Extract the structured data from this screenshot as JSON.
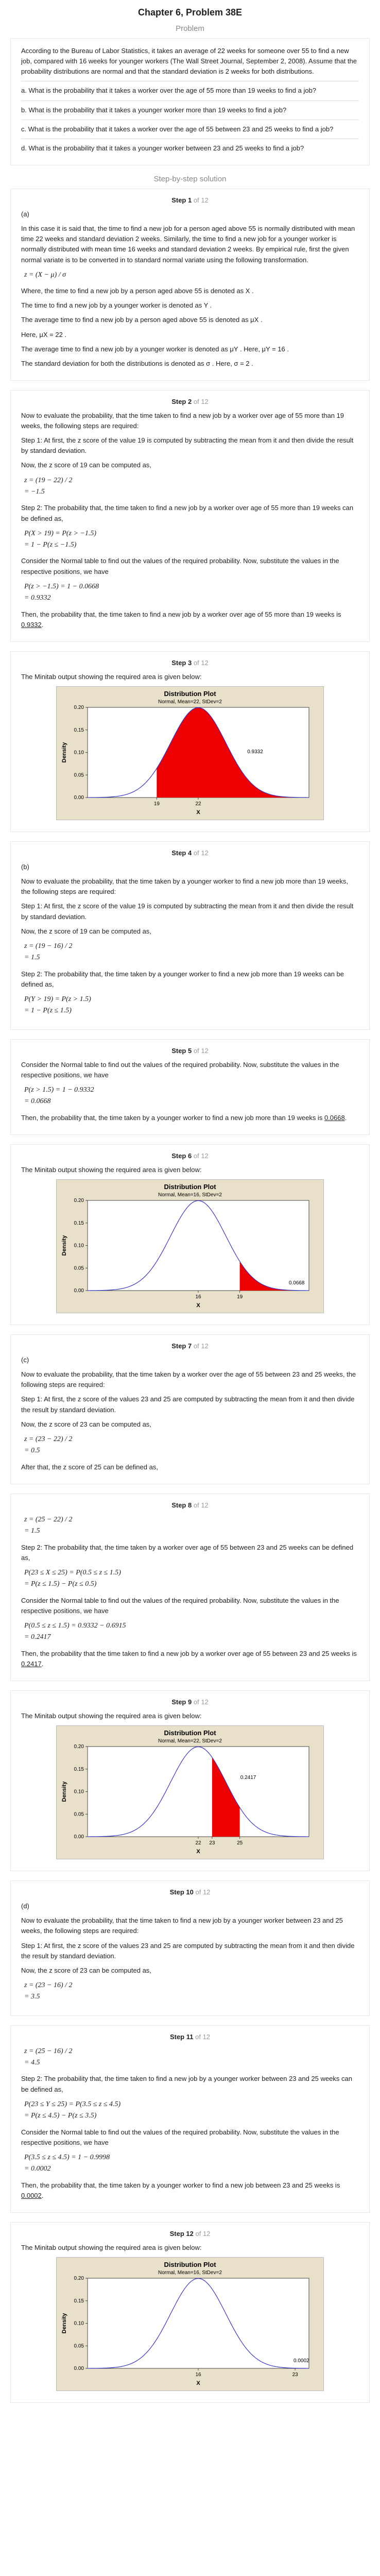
{
  "header": {
    "title": "Chapter 6, Problem 38E",
    "problem_label": "Problem",
    "solution_label": "Step-by-step solution"
  },
  "problem": {
    "intro": "According to the Bureau of Labor Statistics, it takes an average of 22 weeks for someone over 55 to find a new job, compared with 16 weeks for younger workers (The Wall Street Journal, September 2, 2008). Assume that the probability distributions are normal and that the standard deviation is 2 weeks for both distributions.",
    "a": "a. What is the probability that it takes a worker over the age of 55 more than 19 weeks to find a job?",
    "b": "b. What is the probability that it takes a younger worker more than 19 weeks to find a job?",
    "c": "c. What is the probability that it takes a worker over the age of 55 between 23 and 25 weeks to find a job?",
    "d": "d. What is the probability that it takes a younger worker between 23 and 25 weeks to find a job?"
  },
  "steps": [
    {
      "num": "1",
      "of": "of 12",
      "part": "(a)",
      "p1": "In this case it is said that, the time to find a new job for a person aged above 55 is normally distributed with mean time 22 weeks and standard deviation 2 weeks. Similarly, the time to find a new job for a younger worker is normally distributed with mean time 16 weeks and standard deviation 2 weeks. By empirical rule, first the given normal variate is to be converted in to standard normal variate using the following transformation.",
      "formula": "z = (X − μ) / σ",
      "p2": "Where, the time to find a new job by a person aged above 55 is denoted as  X .",
      "p3": "The time to find a new job by a younger worker is denoted as  Y .",
      "p4": "The average time to find a new job by a person aged above 55 is denoted as  μX .",
      "p5": "Here,  μX = 22 .",
      "p6": "The average time to find a new job by a younger worker is denoted as  μY . Here,  μY = 16 .",
      "p7": "The standard deviation for both the distributions is denoted as  σ . Here,  σ = 2 ."
    },
    {
      "num": "2",
      "of": "of 12",
      "p1": "Now to evaluate the probability, that the time taken to find a new job by a worker over age of 55 more than 19 weeks, the following steps are required:",
      "p2": "Step 1: At first, the z score of the value 19 is computed by subtracting the mean from it and then divide the result by standard deviation.",
      "p3": "Now, the z score of 19 can be computed as,",
      "m1": "z = (19 − 22) / 2",
      "m2": "= −1.5",
      "p4": "Step 2: The probability that, the time taken to find a new job by a worker over age of 55 more than 19 weeks can be defined as,",
      "m3": "P(X > 19) = P(z > −1.5)",
      "m4": "= 1 − P(z ≤ −1.5)",
      "p5": "Consider the Normal table to find out the values of the required probability. Now, substitute the values in the respective positions, we have",
      "m5": "P(z > −1.5) = 1 − 0.0668",
      "m6": "= 0.9332",
      "p6": "Then, the probability that, the time taken to find a new job by a worker over age of 55 more than 19 weeks is",
      "ans": "0.9332"
    },
    {
      "num": "3",
      "of": "of 12",
      "p1": "The Minitab output showing the required area is given below:"
    },
    {
      "num": "4",
      "of": "of 12",
      "part": "(b)",
      "p1": "Now to evaluate the probability, that the time taken by a younger worker to find a new job more than 19 weeks, the following steps are required:",
      "p2": "Step 1: At first, the z score of the value 19 is computed by subtracting the mean from it and then divide the result by standard deviation.",
      "p3": "Now, the z score of 19 can be computed as,",
      "m1": "z = (19 − 16) / 2",
      "m2": "= 1.5",
      "p4": "Step 2: The probability that, the time taken by a younger worker to find a new job more than 19 weeks can be defined as,",
      "m3": "P(Y > 19) = P(z > 1.5)",
      "m4": "= 1 − P(z ≤ 1.5)"
    },
    {
      "num": "5",
      "of": "of 12",
      "p1": "Consider the Normal table to find out the values of the required probability. Now, substitute the values in the respective positions, we have",
      "m1": "P(z > 1.5) = 1 − 0.9332",
      "m2": "= 0.0668",
      "p2": "Then, the probability that, the time taken by a younger worker to find a new job more than 19 weeks is",
      "ans": "0.0668"
    },
    {
      "num": "6",
      "of": "of 12",
      "p1": "The Minitab output showing the required area is given below:"
    },
    {
      "num": "7",
      "of": "of 12",
      "part": "(c)",
      "p1": "Now to evaluate the probability, that the time taken by a worker over the age of 55 between 23 and 25 weeks, the following steps are required:",
      "p2": "Step 1: At first, the z score of the values 23 and 25 are computed by subtracting the mean from it and then divide the result by standard deviation.",
      "p3": "Now, the z score of 23 can be computed as,",
      "m1": "z = (23 − 22) / 2",
      "m2": "= 0.5",
      "p4": "After that, the z score of 25 can be defined as,"
    },
    {
      "num": "8",
      "of": "of 12",
      "m1": "z = (25 − 22) / 2",
      "m2": "= 1.5",
      "p1": "Step 2: The probability that, the time taken by a worker over age of 55 between 23 and 25 weeks can be defined as,",
      "m3": "P(23 ≤ X ≤ 25) = P(0.5 ≤ z ≤ 1.5)",
      "m4": "= P(z ≤ 1.5) − P(z ≤ 0.5)",
      "p2": "Consider the Normal table to find out the values of the required probability. Now, substitute the values in the respective positions, we have",
      "m5": "P(0.5 ≤ z ≤ 1.5) = 0.9332 − 0.6915",
      "m6": "= 0.2417",
      "p3": "Then, the probability that the time taken to find a new job by a worker over age of 55 between 23 and 25 weeks is",
      "ans": "0.2417"
    },
    {
      "num": "9",
      "of": "of 12",
      "p1": "The Minitab output showing the required area is given below:"
    },
    {
      "num": "10",
      "of": "of 12",
      "part": "(d)",
      "p1": "Now to evaluate the probability, that the time taken to find a new job by a younger worker between 23 and 25 weeks, the following steps are required:",
      "p2": "Step 1: At first, the z score of the values 23 and 25 are computed by subtracting the mean from it and then divide the result by standard deviation.",
      "p3": "Now, the z score of 23 can be computed as,",
      "m1": "z = (23 − 16) / 2",
      "m2": "= 3.5"
    },
    {
      "num": "11",
      "of": "of 12",
      "m1": "z = (25 − 16) / 2",
      "m2": "= 4.5",
      "p1": "Step 2: The probability that, the time taken to find a new job by a younger worker between 23 and 25 weeks can be defined as,",
      "m3": "P(23 ≤ Y ≤ 25) = P(3.5 ≤ z ≤ 4.5)",
      "m4": "= P(z ≤ 4.5) − P(z ≤ 3.5)",
      "p2": "Consider the Normal table to find out the values of the required probability. Now, substitute the values in the respective positions, we have",
      "m5": "P(3.5 ≤ z ≤ 4.5) = 1 − 0.9998",
      "m6": "= 0.0002",
      "p3": "Then, the probability that, the time taken by a younger worker to find a new job between 23 and 25 weeks is",
      "ans": "0.0002"
    },
    {
      "num": "12",
      "of": "of 12",
      "p1": "The Minitab output showing the required area is given below:"
    }
  ],
  "charts": [
    {
      "title": "Distribution Plot",
      "subtitle": "Normal, Mean=22, StDev=2",
      "xlabel": "X",
      "ylabel": "Density",
      "mean": 22,
      "sd": 2,
      "shade_from": 19,
      "shade_to": 30,
      "area_label": "0.9332",
      "xticks": [
        "19",
        "22"
      ],
      "yticks": [
        "0.00",
        "0.05",
        "0.10",
        "0.15",
        "0.20"
      ]
    },
    {
      "title": "Distribution Plot",
      "subtitle": "Normal, Mean=16, StDev=2",
      "xlabel": "X",
      "ylabel": "Density",
      "mean": 16,
      "sd": 2,
      "shade_from": 19,
      "shade_to": 24,
      "area_label": "0.0668",
      "xticks": [
        "16",
        "19"
      ],
      "yticks": [
        "0.00",
        "0.05",
        "0.10",
        "0.15",
        "0.20"
      ]
    },
    {
      "title": "Distribution Plot",
      "subtitle": "Normal, Mean=22, StDev=2",
      "xlabel": "X",
      "ylabel": "Density",
      "mean": 22,
      "sd": 2,
      "shade_from": 23,
      "shade_to": 25,
      "area_label": "0.2417",
      "xticks": [
        "22",
        "23",
        "25"
      ],
      "yticks": [
        "0.00",
        "0.05",
        "0.10",
        "0.15",
        "0.20"
      ]
    },
    {
      "title": "Distribution Plot",
      "subtitle": "Normal, Mean=16, StDev=2",
      "xlabel": "X",
      "ylabel": "Density",
      "mean": 16,
      "sd": 2,
      "shade_from": 23,
      "shade_to": 25,
      "area_label": "0.0002",
      "xticks": [
        "16",
        "23"
      ],
      "yticks": [
        "0.00",
        "0.05",
        "0.10",
        "0.15",
        "0.20"
      ]
    }
  ],
  "chart_data": [
    {
      "type": "area",
      "title": "Distribution Plot",
      "subtitle": "Normal, Mean=22, StDev=2",
      "xlabel": "X",
      "ylabel": "Density",
      "ylim": [
        0,
        0.2
      ],
      "annotations": [
        "0.9332"
      ]
    },
    {
      "type": "area",
      "title": "Distribution Plot",
      "subtitle": "Normal, Mean=16, StDev=2",
      "xlabel": "X",
      "ylabel": "Density",
      "ylim": [
        0,
        0.2
      ],
      "annotations": [
        "0.0668"
      ]
    },
    {
      "type": "area",
      "title": "Distribution Plot",
      "subtitle": "Normal, Mean=22, StDev=2",
      "xlabel": "X",
      "ylabel": "Density",
      "ylim": [
        0,
        0.2
      ],
      "annotations": [
        "0.2417"
      ]
    },
    {
      "type": "area",
      "title": "Distribution Plot",
      "subtitle": "Normal, Mean=16, StDev=2",
      "xlabel": "X",
      "ylabel": "Density",
      "ylim": [
        0,
        0.2
      ],
      "annotations": [
        "0.0002"
      ]
    }
  ]
}
